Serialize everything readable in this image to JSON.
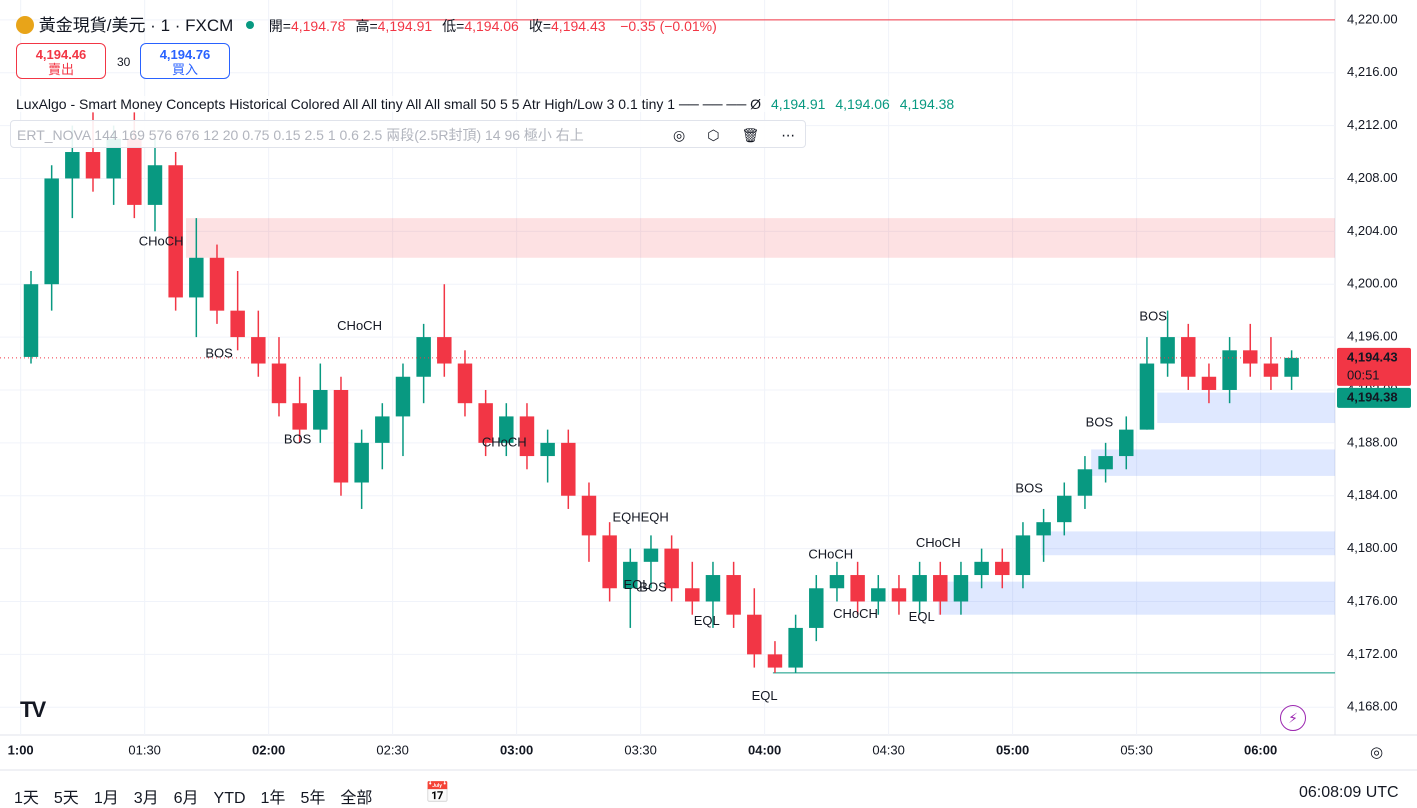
{
  "header": {
    "symbol": "黃金現貨/美元 · 1 · FXCM",
    "ohlc": [
      {
        "label": "開=",
        "value": "4,194.78"
      },
      {
        "label": "高=",
        "value": "4,194.91"
      },
      {
        "label": "低=",
        "value": "4,194.06"
      },
      {
        "label": "收=",
        "value": "4,194.43"
      }
    ],
    "change": "−0.35 (−0.01%)",
    "sell_price": "4,194.46",
    "sell_label": "賣出",
    "spread": "30",
    "buy_price": "4,194.76",
    "buy_label": "買入"
  },
  "indicators": [
    {
      "text": "LuxAlgo - Smart Money Concepts Historical Colored All All tiny All All small 50 5 5 Atr High/Low 3 0.1 tiny 1 ── ── ──  Ø",
      "values": [
        "4,194.91",
        "4,194.06",
        "4,194.38"
      ]
    },
    {
      "text": "ERT_NOVA 144 169 576 676 12 20 0.75 0.15 2.5 1 0.6 2.5 兩段(2.5R封頂) 14 96 極小 右上"
    }
  ],
  "footer": {
    "ranges": [
      "1天",
      "5天",
      "1月",
      "3月",
      "6月",
      "YTD",
      "1年",
      "5年",
      "全部"
    ],
    "clock": "06:08:09 UTC"
  },
  "chart_data": {
    "type": "candlestick",
    "up_color": "#089981",
    "down_color": "#f23645",
    "x": [
      "01:00",
      "01:05",
      "01:10",
      "01:15",
      "01:20",
      "01:25",
      "01:30",
      "01:35",
      "01:40",
      "01:45",
      "01:50",
      "01:55",
      "02:00",
      "02:05",
      "02:10",
      "02:15",
      "02:20",
      "02:25",
      "02:30",
      "02:35",
      "02:40",
      "02:45",
      "02:50",
      "02:55",
      "03:00",
      "03:05",
      "03:10",
      "03:15",
      "03:20",
      "03:25",
      "03:30",
      "03:35",
      "03:40",
      "03:45",
      "03:50",
      "03:55",
      "04:00",
      "04:05",
      "04:10",
      "04:15",
      "04:20",
      "04:25",
      "04:30",
      "04:35",
      "04:40",
      "04:45",
      "04:50",
      "04:55",
      "05:00",
      "05:05",
      "05:10",
      "05:15",
      "05:20",
      "05:25",
      "05:30",
      "05:35",
      "05:40",
      "05:45",
      "05:50",
      "05:55",
      "06:00",
      "06:05"
    ],
    "open": [
      4194.5,
      4200,
      4208,
      4210,
      4208,
      4211,
      4206,
      4209,
      4199,
      4202,
      4198,
      4196,
      4194,
      4191,
      4189,
      4192,
      4185,
      4188,
      4190,
      4193,
      4196,
      4194,
      4191,
      4188,
      4190,
      4187,
      4188,
      4184,
      4181,
      4177,
      4179,
      4180,
      4177,
      4176,
      4178,
      4175,
      4172,
      4171,
      4174,
      4177,
      4178,
      4176,
      4177,
      4176,
      4178,
      4176,
      4178,
      4179,
      4178,
      4181,
      4182,
      4184,
      4186,
      4187,
      4189,
      4194,
      4196,
      4193,
      4192,
      4195,
      4194,
      4193
    ],
    "high": [
      4201,
      4209,
      4212,
      4213,
      4212,
      4213,
      4211,
      4210,
      4205,
      4203,
      4201,
      4198,
      4196,
      4193,
      4194,
      4193,
      4189,
      4191,
      4194,
      4197,
      4200,
      4195,
      4192,
      4191,
      4191,
      4189,
      4189,
      4185,
      4182,
      4180,
      4181,
      4181,
      4179,
      4179,
      4179,
      4177,
      4173,
      4175,
      4178,
      4179,
      4179,
      4178,
      4178,
      4179,
      4179,
      4179,
      4180,
      4180,
      4182,
      4183,
      4185,
      4187,
      4188,
      4190,
      4196,
      4198,
      4197,
      4194,
      4196,
      4197,
      4196,
      4195
    ],
    "low": [
      4194,
      4198,
      4205,
      4207,
      4206,
      4205,
      4204,
      4198,
      4196,
      4197,
      4195,
      4193,
      4190,
      4188,
      4188,
      4184,
      4183,
      4186,
      4187,
      4191,
      4193,
      4190,
      4187,
      4187,
      4186,
      4185,
      4183,
      4179,
      4176,
      4174,
      4177,
      4176,
      4175,
      4174,
      4174,
      4171,
      4170.6,
      4170.6,
      4173,
      4176,
      4175,
      4175,
      4175,
      4175,
      4175,
      4175,
      4177,
      4177,
      4177,
      4179,
      4181,
      4183,
      4185,
      4186,
      4189,
      4193,
      4192,
      4191,
      4191,
      4193,
      4192,
      4192
    ],
    "close": [
      4200,
      4208,
      4210,
      4208,
      4211,
      4206,
      4209,
      4199,
      4202,
      4198,
      4196,
      4194,
      4191,
      4189,
      4192,
      4185,
      4188,
      4190,
      4193,
      4196,
      4194,
      4191,
      4188,
      4190,
      4187,
      4188,
      4184,
      4181,
      4177,
      4179,
      4180,
      4177,
      4176,
      4178,
      4175,
      4172,
      4171,
      4174,
      4177,
      4178,
      4176,
      4177,
      4176,
      4178,
      4176,
      4178,
      4179,
      4178,
      4181,
      4182,
      4184,
      4186,
      4187,
      4189,
      4194,
      4196,
      4193,
      4192,
      4195,
      4194,
      4193,
      4194.43
    ],
    "xlim": [
      "00:55",
      "06:18"
    ],
    "ylim": [
      4165.9,
      4221.5
    ],
    "xticks": [
      {
        "value": "01:00",
        "label": "1:00"
      },
      "01:30",
      {
        "value": "02:00",
        "label": "02:00"
      },
      "02:30",
      "03:00",
      "03:30",
      "04:00",
      "04:30",
      "05:00",
      "05:30",
      "06:00"
    ],
    "yticks": [
      {
        "value": 4168,
        "label": "4,168.00"
      },
      {
        "value": 4172,
        "label": "4,172.00"
      },
      {
        "value": 4176,
        "label": "4,176.00"
      },
      {
        "value": 4180,
        "label": "4,180.00"
      },
      {
        "value": 4184,
        "label": "4,184.00"
      },
      {
        "value": 4188,
        "label": "4,188.00"
      },
      {
        "value": 4192,
        "label": "4,192.00"
      },
      {
        "value": 4196,
        "label": "4,196.00"
      },
      {
        "value": 4200,
        "label": "4,200.00"
      },
      {
        "value": 4204,
        "label": "4,204.00"
      },
      {
        "value": 4208,
        "label": "4,208.00"
      },
      {
        "value": 4212,
        "label": "4,212.00"
      },
      {
        "value": 4216,
        "label": "4,216.00"
      },
      {
        "value": 4220,
        "label": "4,220.00"
      }
    ],
    "grid": true,
    "zones": [
      {
        "color": "#f2364526",
        "from": "01:40",
        "bottom": 4202,
        "top": 4205
      },
      {
        "color": "#2962ff26",
        "from": "05:35",
        "bottom": 4189.5,
        "top": 4191.8
      },
      {
        "color": "#2962ff26",
        "from": "05:19",
        "bottom": 4185.5,
        "top": 4187.5
      },
      {
        "color": "#2962ff26",
        "from": "05:07",
        "bottom": 4179.5,
        "top": 4181.3
      },
      {
        "color": "#2962ff26",
        "from": "04:42",
        "bottom": 4175,
        "top": 4177.5
      }
    ],
    "levels": [
      {
        "value": 4220,
        "color": "#f23645",
        "from": "02:18"
      },
      {
        "value": 4170.6,
        "color": "#089981",
        "from": "04:02"
      }
    ],
    "annotations": [
      {
        "text": "CHoCH",
        "x": "01:34",
        "y": 4203.2,
        "color": "#f23645"
      },
      {
        "text": "BOS",
        "x": "01:48",
        "y": 4194.7,
        "color": "#f23645"
      },
      {
        "text": "CHoCH",
        "x": "02:22",
        "y": 4196.8,
        "color": "#089981"
      },
      {
        "text": "BOS",
        "x": "02:07",
        "y": 4188.2,
        "color": "#f23645"
      },
      {
        "text": "CHoCH",
        "x": "02:57",
        "y": 4188,
        "color": "#f23645"
      },
      {
        "text": "EQHEQH",
        "x": "03:30",
        "y": 4182.3,
        "color": "#f23645"
      },
      {
        "text": "EQL",
        "x": "03:29",
        "y": 4177.2,
        "color": "#089981"
      },
      {
        "text": "BOS",
        "x": "03:33",
        "y": 4177,
        "color": "#f23645"
      },
      {
        "text": "EQL",
        "x": "03:46",
        "y": 4174.5,
        "color": "#089981"
      },
      {
        "text": "EQL",
        "x": "04:00",
        "y": 4168.8,
        "color": "#089981"
      },
      {
        "text": "CHoCH",
        "x": "04:16",
        "y": 4179.5,
        "color": "#089981"
      },
      {
        "text": "CHoCH",
        "x": "04:22",
        "y": 4175,
        "color": "#f23645"
      },
      {
        "text": "EQL",
        "x": "04:38",
        "y": 4174.8,
        "color": "#089981"
      },
      {
        "text": "CHoCH",
        "x": "04:42",
        "y": 4180.4,
        "color": "#089981"
      },
      {
        "text": "BOS",
        "x": "05:04",
        "y": 4184.5,
        "color": "#089981"
      },
      {
        "text": "BOS",
        "x": "05:21",
        "y": 4189.5,
        "color": "#089981"
      },
      {
        "text": "BOS",
        "x": "05:34",
        "y": 4197.5,
        "color": "#089981"
      }
    ],
    "last_price": {
      "value": 4194.43,
      "label": "4,194.43",
      "countdown": "00:51",
      "color": "#f23645"
    },
    "indicator_price": {
      "value": 4194.38,
      "label": "4,194.38",
      "color": "#089981"
    }
  }
}
